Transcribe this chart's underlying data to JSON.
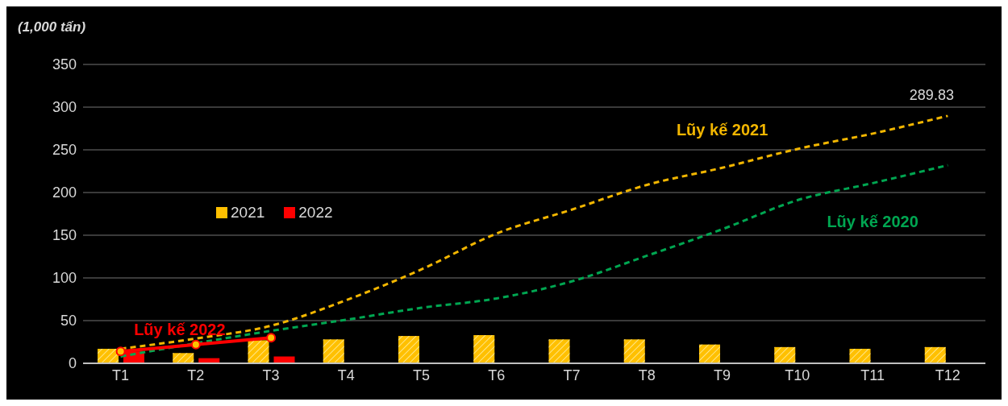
{
  "chart_data": {
    "type": "bar",
    "ylabel": "(1,000 tấn)",
    "categories": [
      "T1",
      "T2",
      "T3",
      "T4",
      "T5",
      "T6",
      "T7",
      "T8",
      "T9",
      "T10",
      "T11",
      "T12"
    ],
    "ylim": [
      0,
      350
    ],
    "yticks": [
      0,
      50,
      100,
      150,
      200,
      250,
      300,
      350
    ],
    "grid": "y",
    "legend": "left",
    "series": [
      {
        "name": "2021",
        "color": "#ffc000",
        "values": [
          17,
          12,
          27,
          28,
          32,
          33,
          28,
          28,
          22,
          19,
          17,
          19
        ]
      },
      {
        "name": "2022",
        "color": "#ff0000",
        "values": [
          14,
          6,
          8,
          null,
          null,
          null,
          null,
          null,
          null,
          null,
          null,
          null
        ]
      },
      {
        "name": "Lũy kế 2021",
        "type": "line",
        "color": "#f2b600",
        "line_style": "dashed",
        "marker": "none",
        "values": [
          17,
          29,
          44,
          74,
          110,
          152,
          180,
          209,
          229,
          251,
          269,
          289.83
        ],
        "value_labels": [
          null,
          null,
          null,
          null,
          null,
          null,
          null,
          null,
          null,
          null,
          null,
          "289.83"
        ]
      },
      {
        "name": "Lũy kế 2020",
        "type": "line",
        "color": "#00a651",
        "line_style": "dashed",
        "marker": "none",
        "values": [
          8,
          null,
          38,
          51,
          65,
          76,
          96,
          126,
          157,
          191,
          211,
          232
        ]
      },
      {
        "name": "Lũy kế 2022",
        "type": "line",
        "color": "#ff0000",
        "line_style": "solid",
        "marker": "circle",
        "values": [
          14,
          22,
          30,
          null,
          null,
          null,
          null,
          null,
          null,
          null,
          null,
          null
        ]
      }
    ]
  }
}
